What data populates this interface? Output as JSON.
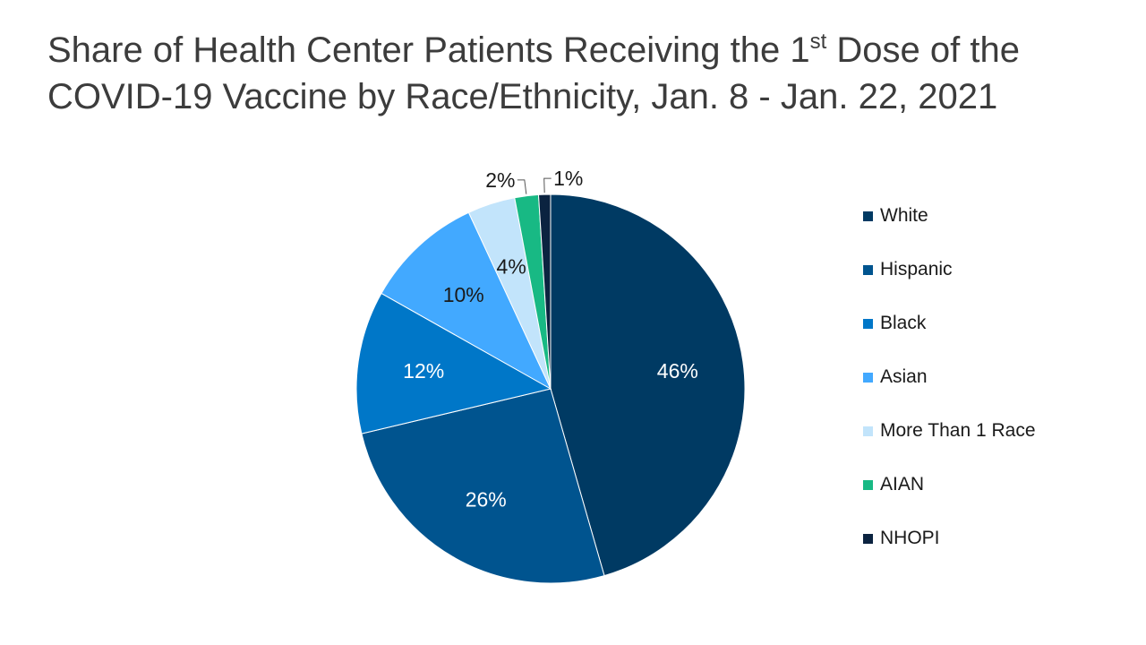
{
  "title": {
    "prefix": "Share of Health Center Patients Receiving the 1",
    "superscript": "st",
    "suffix": " Dose of the",
    "line2": "COVID-19 Vaccine by Race/Ethnicity, Jan. 8 - Jan. 22, 2021"
  },
  "chart_data": {
    "type": "pie",
    "title": "Share of Health Center Patients Receiving the 1st Dose of the COVID-19 Vaccine by Race/Ethnicity, Jan. 8 - Jan. 22, 2021",
    "categories": [
      "White",
      "Hispanic",
      "Black",
      "Asian",
      "More Than 1 Race",
      "AIAN",
      "NHOPI"
    ],
    "values": [
      46,
      26,
      12,
      10,
      4,
      2,
      1
    ],
    "data_labels": [
      "46%",
      "26%",
      "12%",
      "10%",
      "4%",
      "2%",
      "1%"
    ],
    "colors": [
      "#003a63",
      "#00548f",
      "#0077c8",
      "#42a9ff",
      "#c2e4fb",
      "#18b984",
      "#0b2340"
    ],
    "label_colors": [
      "#ffffff",
      "#ffffff",
      "#ffffff",
      "#1a1a1a",
      "#1a1a1a",
      "#1a1a1a",
      "#1a1a1a"
    ],
    "legend_placement": "right"
  }
}
